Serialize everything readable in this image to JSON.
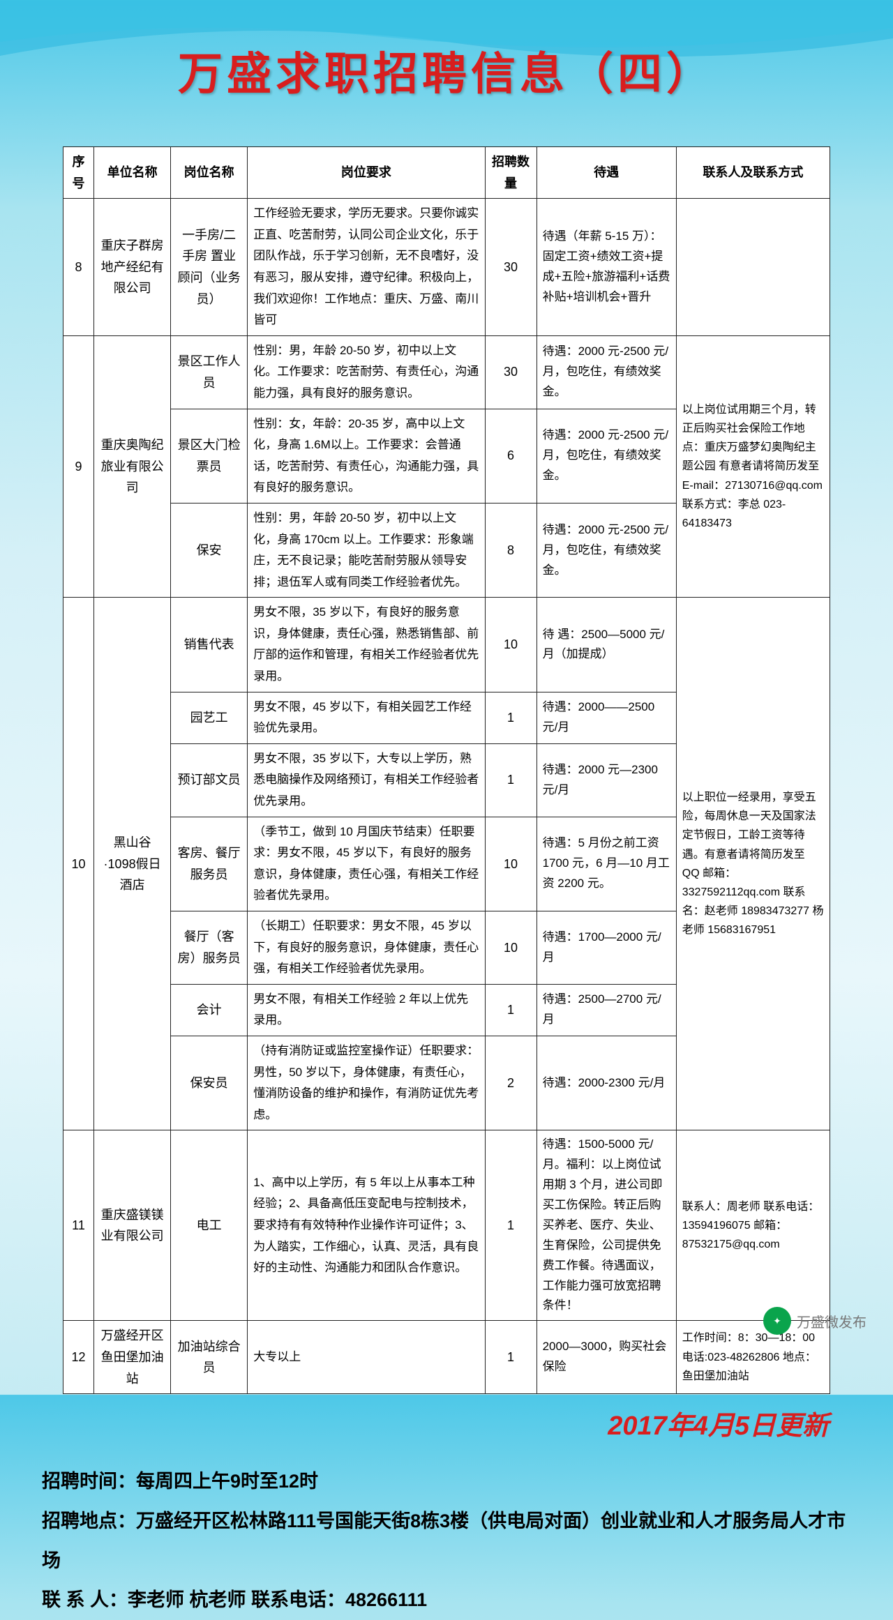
{
  "title": "万盛求职招聘信息（四）",
  "headers": [
    "序号",
    "单位名称",
    "岗位名称",
    "岗位要求",
    "招聘数量",
    "待遇",
    "联系人及联系方式"
  ],
  "rows": [
    {
      "no": "8",
      "company": "重庆子群房地产经纪有限公司",
      "positions": [
        {
          "name": "一手房/二手房 置业顾问（业务员）",
          "req": "工作经验无要求，学历无要求。只要你诚实正直、吃苦耐劳，认同公司企业文化，乐于团队作战，乐于学习创新，无不良嗜好，没有恶习，服从安排，遵守纪律。积极向上，我们欢迎你！工作地点：重庆、万盛、南川皆可",
          "num": "30",
          "treat": "待遇（年薪 5-15 万）：固定工资+绩效工资+提成+五险+旅游福利+话费补贴+培训机会+晋升"
        }
      ],
      "contact": ""
    },
    {
      "no": "9",
      "company": "重庆奥陶纪旅业有限公司",
      "positions": [
        {
          "name": "景区工作人员",
          "req": "性别：男，年龄 20-50 岁，初中以上文化。工作要求：吃苦耐劳、有责任心，沟通能力强，具有良好的服务意识。",
          "num": "30",
          "treat": "待遇：2000 元-2500 元/月，包吃住，有绩效奖金。"
        },
        {
          "name": "景区大门检票员",
          "req": "性别：女，年龄：20-35 岁，高中以上文化，身高 1.6M以上。工作要求：会普通话，吃苦耐劳、有责任心，沟通能力强，具有良好的服务意识。",
          "num": "6",
          "treat": "待遇：2000 元-2500 元/月，包吃住，有绩效奖金。"
        },
        {
          "name": "保安",
          "req": "性别：男，年龄 20-50 岁，初中以上文化，身高 170cm 以上。工作要求：形象端庄，无不良记录；能吃苦耐劳服从领导安排；退伍军人或有同类工作经验者优先。",
          "num": "8",
          "treat": "待遇：2000 元-2500 元/月，包吃住，有绩效奖金。"
        }
      ],
      "contact": "以上岗位试用期三个月，转正后购买社会保险工作地点：重庆万盛梦幻奥陶纪主题公园 有意者请将简历发至 E-mail：27130716@qq.com 联系方式：李总 023-64183473"
    },
    {
      "no": "10",
      "company": "黑山谷·1098假日酒店",
      "positions": [
        {
          "name": "销售代表",
          "req": "男女不限，35 岁以下，有良好的服务意识，身体健康，责任心强，熟悉销售部、前厅部的运作和管理，有相关工作经验者优先录用。",
          "num": "10",
          "treat": "待 遇：2500—5000 元/月（加提成）"
        },
        {
          "name": "园艺工",
          "req": "男女不限，45 岁以下，有相关园艺工作经验优先录用。",
          "num": "1",
          "treat": "待遇：2000——2500 元/月"
        },
        {
          "name": "预订部文员",
          "req": "男女不限，35 岁以下，大专以上学历，熟悉电脑操作及网络预订，有相关工作经验者优先录用。",
          "num": "1",
          "treat": "待遇：2000 元—2300 元/月"
        },
        {
          "name": "客房、餐厅服务员",
          "req": "（季节工，做到 10 月国庆节结束）任职要求：男女不限，45 岁以下，有良好的服务意识，身体健康，责任心强，有相关工作经验者优先录用。",
          "num": "10",
          "treat": "待遇：5 月份之前工资 1700 元，6 月—10 月工资 2200 元。"
        },
        {
          "name": "餐厅（客房）服务员",
          "req": "（长期工）任职要求：男女不限，45 岁以下，有良好的服务意识，身体健康，责任心强，有相关工作经验者优先录用。",
          "num": "10",
          "treat": "待遇：1700—2000 元/月"
        },
        {
          "name": "会计",
          "req": "男女不限，有相关工作经验 2 年以上优先录用。",
          "num": "1",
          "treat": "待遇：2500—2700 元/月"
        },
        {
          "name": "保安员",
          "req": "（持有消防证或监控室操作证）任职要求：男性，50 岁以下，身体健康，有责任心，懂消防设备的维护和操作，有消防证优先考虑。",
          "num": "2",
          "treat": "待遇：2000-2300 元/月"
        }
      ],
      "contact": "以上职位一经录用，享受五险，每周休息一天及国家法定节假日，工龄工资等待遇。有意者请将简历发至 QQ 邮箱：3327592112qq.com 联系名：赵老师 18983473277 杨老师 15683167951"
    },
    {
      "no": "11",
      "company": "重庆盛镁镁业有限公司",
      "positions": [
        {
          "name": "电工",
          "req": "1、高中以上学历，有 5 年以上从事本工种经验；2、具备高低压变配电与控制技术，要求持有有效特种作业操作许可证件；3、为人踏实，工作细心，认真、灵活，具有良好的主动性、沟通能力和团队合作意识。",
          "num": "1",
          "treat": "待遇：1500-5000 元/月。福利：以上岗位试用期 3 个月，进公司即买工伤保险。转正后购买养老、医疗、失业、生育保险，公司提供免费工作餐。待遇面议，工作能力强可放宽招聘条件！"
        }
      ],
      "contact": "联系人：周老师 联系电话：13594196075 邮箱：87532175@qq.com"
    },
    {
      "no": "12",
      "company": "万盛经开区鱼田堡加油站",
      "positions": [
        {
          "name": "加油站综合员",
          "req": "大专以上",
          "num": "1",
          "treat": "2000—3000，购买社会保险"
        }
      ],
      "contact": "工作时间：8：30—18：00 电话:023-48262806 地点：鱼田堡加油站"
    }
  ],
  "update_date": "2017年4月5日更新",
  "footer": {
    "time": "招聘时间：每周四上午9时至12时",
    "place": "招聘地点：万盛经开区松林路111号国能天街8栋3楼（供电局对面）创业就业和人才服务局人才市场",
    "staff": "联 系 人：李老师  杭老师      联系电话：48266111"
  },
  "watermark": "万盛微发布",
  "colors": {
    "title_color": "#d81e1e",
    "date_color": "#d81e1e",
    "bg_top": "#4dc8e8",
    "bg_mid": "#d5f0f7",
    "border": "#222222"
  }
}
